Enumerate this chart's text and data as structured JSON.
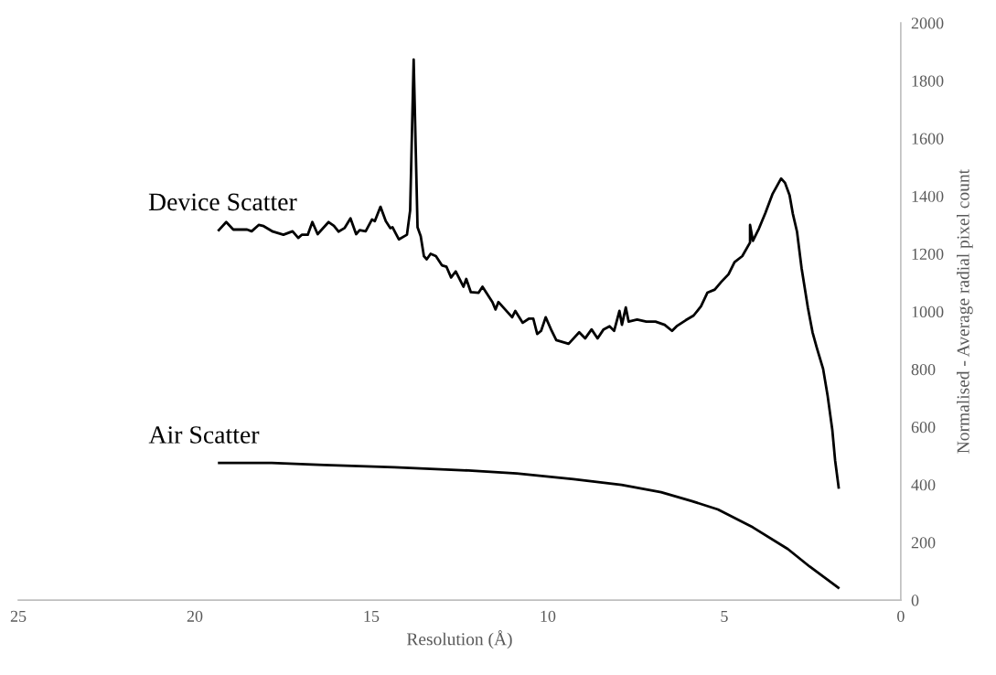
{
  "chart_data": {
    "type": "line",
    "xlabel": "Resolution (Å)",
    "ylabel": "Normalised - Average radial pixel count",
    "xlim": [
      25,
      0
    ],
    "xticks": [
      25,
      20,
      15,
      10,
      5,
      0
    ],
    "ylim": [
      0,
      2000
    ],
    "yticks": [
      0,
      200,
      400,
      600,
      800,
      1000,
      1200,
      1400,
      1600,
      1800,
      2000
    ],
    "grid": false,
    "legend": false,
    "series": [
      {
        "name": "Device Scatter",
        "color": "#000000",
        "x": [
          19.32,
          19.11,
          18.91,
          18.52,
          18.39,
          18.19,
          18.05,
          17.79,
          17.49,
          17.23,
          17.07,
          16.97,
          16.8,
          16.67,
          16.52,
          16.21,
          16.06,
          15.93,
          15.76,
          15.59,
          15.43,
          15.33,
          15.16,
          14.98,
          14.9,
          14.74,
          14.59,
          14.46,
          14.4,
          14.22,
          13.99,
          13.9,
          13.8,
          13.69,
          13.6,
          13.51,
          13.43,
          13.32,
          13.17,
          13.0,
          12.87,
          12.74,
          12.61,
          12.39,
          12.31,
          12.18,
          11.96,
          11.85,
          11.57,
          11.48,
          11.4,
          11.01,
          10.92,
          10.71,
          10.54,
          10.41,
          10.3,
          10.19,
          10.06,
          9.89,
          9.76,
          9.41,
          9.11,
          8.94,
          8.76,
          8.59,
          8.42,
          8.25,
          8.12,
          7.97,
          7.9,
          7.79,
          7.71,
          7.47,
          7.21,
          6.95,
          6.69,
          6.48,
          6.35,
          6.09,
          5.87,
          5.66,
          5.48,
          5.27,
          5.09,
          4.88,
          4.71,
          4.49,
          4.27,
          4.27,
          4.19,
          4.02,
          3.84,
          3.63,
          3.39,
          3.28,
          3.15,
          3.06,
          2.94,
          2.81,
          2.63,
          2.5,
          2.38,
          2.2,
          2.07,
          1.94,
          1.86,
          1.76
        ],
        "values": [
          1282,
          1310,
          1284,
          1284,
          1278,
          1300,
          1296,
          1277,
          1266,
          1278,
          1255,
          1266,
          1266,
          1310,
          1268,
          1310,
          1297,
          1277,
          1289,
          1323,
          1268,
          1282,
          1278,
          1319,
          1313,
          1363,
          1313,
          1289,
          1292,
          1250,
          1266,
          1350,
          1873,
          1292,
          1261,
          1192,
          1181,
          1200,
          1192,
          1160,
          1155,
          1118,
          1139,
          1086,
          1113,
          1067,
          1065,
          1086,
          1033,
          1007,
          1033,
          980,
          1002,
          961,
          975,
          975,
          922,
          933,
          980,
          933,
          901,
          888,
          928,
          907,
          938,
          907,
          938,
          949,
          933,
          1002,
          954,
          1014,
          965,
          972,
          965,
          965,
          954,
          933,
          949,
          970,
          986,
          1018,
          1065,
          1076,
          1102,
          1129,
          1171,
          1192,
          1239,
          1300,
          1245,
          1287,
          1340,
          1408,
          1461,
          1446,
          1403,
          1340,
          1277,
          1150,
          1012,
          928,
          875,
          801,
          706,
          590,
          484,
          390
        ]
      },
      {
        "name": "Air Scatter",
        "color": "#000000",
        "x": [
          19.31,
          17.82,
          16.34,
          14.35,
          12.25,
          10.88,
          9.27,
          7.91,
          6.79,
          5.92,
          5.18,
          4.19,
          3.2,
          2.58,
          1.77
        ],
        "values": [
          475,
          475,
          468,
          460,
          449,
          439,
          419,
          399,
          374,
          343,
          314,
          252,
          177,
          116,
          43
        ]
      }
    ]
  }
}
